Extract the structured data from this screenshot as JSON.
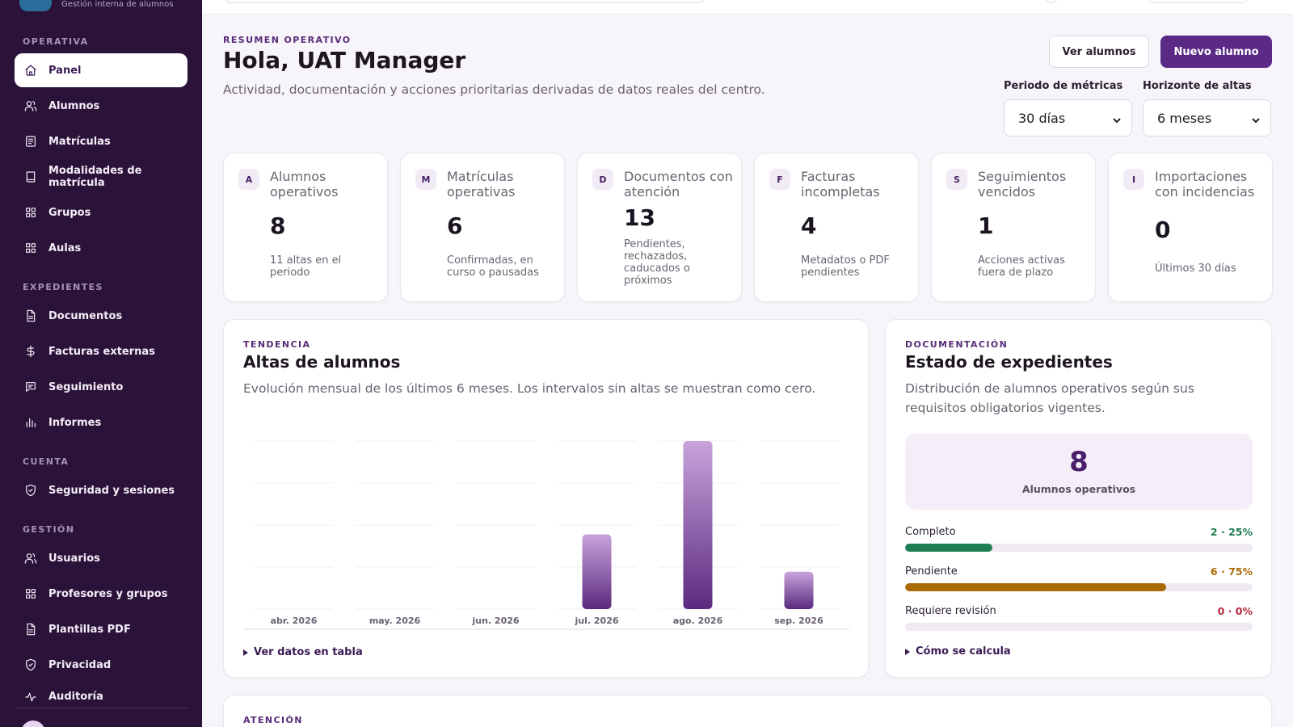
{
  "brand": {
    "subtitle": "Gestión interna de alumnos"
  },
  "sidebar": {
    "sections": [
      {
        "label": "OPERATIVA"
      },
      {
        "label": "EXPEDIENTES"
      },
      {
        "label": "CUENTA"
      },
      {
        "label": "GESTIÓN"
      }
    ],
    "items": [
      {
        "label": "Panel",
        "icon": "home-icon",
        "active": true
      },
      {
        "label": "Alumnos",
        "icon": "users-icon"
      },
      {
        "label": "Matrículas",
        "icon": "clipboard-icon"
      },
      {
        "label": "Modalidades de matrícula",
        "icon": "book-icon"
      },
      {
        "label": "Grupos",
        "icon": "grid-icon"
      },
      {
        "label": "Aulas",
        "icon": "grid-icon"
      },
      {
        "label": "Documentos",
        "icon": "file-icon"
      },
      {
        "label": "Facturas externas",
        "icon": "dollar-icon"
      },
      {
        "label": "Seguimiento",
        "icon": "message-icon"
      },
      {
        "label": "Informes",
        "icon": "bar-chart-icon"
      },
      {
        "label": "Seguridad y sesiones",
        "icon": "shield-icon"
      },
      {
        "label": "Usuarios",
        "icon": "users-icon"
      },
      {
        "label": "Profesores y grupos",
        "icon": "grid-icon"
      },
      {
        "label": "Plantillas PDF",
        "icon": "file-icon"
      },
      {
        "label": "Privacidad",
        "icon": "shield-icon"
      },
      {
        "label": "Auditoría",
        "icon": "activity-icon"
      }
    ]
  },
  "header": {
    "eyebrow": "RESUMEN OPERATIVO",
    "title": "Hola, UAT Manager",
    "subtitle": "Actividad, documentación y acciones prioritarias derivadas de datos reales del centro.",
    "view_students_label": "Ver alumnos",
    "new_student_label": "Nuevo alumno",
    "metrics_period_label": "Periodo de métricas",
    "metrics_period_value": "30 días",
    "enrollment_horizon_label": "Horizonte de altas",
    "enrollment_horizon_value": "6 meses"
  },
  "metrics": [
    {
      "badge": "A",
      "title": "Alumnos operativos",
      "value": "8",
      "note": "11 altas en el periodo"
    },
    {
      "badge": "M",
      "title": "Matrículas operativas",
      "value": "6",
      "note": "Confirmadas, en curso o pausadas"
    },
    {
      "badge": "D",
      "title": "Documentos con atención",
      "value": "13",
      "note": "Pendientes, rechazados, caducados o próximos"
    },
    {
      "badge": "F",
      "title": "Facturas incompletas",
      "value": "4",
      "note": "Metadatos o PDF pendientes"
    },
    {
      "badge": "S",
      "title": "Seguimientos vencidos",
      "value": "1",
      "note": "Acciones activas fuera de plazo"
    },
    {
      "badge": "I",
      "title": "Importaciones con incidencias",
      "value": "0",
      "note": "Últimos 30 días"
    }
  ],
  "trend": {
    "eyebrow": "TENDENCIA",
    "title": "Altas de alumnos",
    "subtitle": "Evolución mensual de los últimos 6 meses. Los intervalos sin altas se muestran como cero.",
    "details_label": "Ver datos en tabla"
  },
  "chart_data": {
    "type": "bar",
    "title": "Altas de alumnos",
    "categories": [
      "abr. 2026",
      "may. 2026",
      "jun. 2026",
      "jul. 2026",
      "ago. 2026",
      "sep. 2026"
    ],
    "values": [
      0,
      0,
      0,
      2,
      4.5,
      1
    ],
    "ylim": [
      0,
      4.5
    ],
    "grid": true,
    "colors": {
      "bar_top": "#c9a3dc",
      "bar_bottom": "#5b2a7f"
    }
  },
  "docs": {
    "eyebrow": "DOCUMENTACIÓN",
    "title": "Estado de expedientes",
    "subtitle_line1": "Distribución de alumnos operativos según sus",
    "subtitle_line2": "requisitos obligatorios vigentes.",
    "total_value": "8",
    "total_label": "Alumnos operativos",
    "details_label": "Cómo se calcula",
    "rows": [
      {
        "label": "Completo",
        "value": "2 · 25%",
        "fraction": 0.25,
        "color": "#1e7d53"
      },
      {
        "label": "Pendiente",
        "value": "6 · 75%",
        "fraction": 0.75,
        "color": "#a96b08"
      },
      {
        "label": "Requiere revisión",
        "value": "0 · 0%",
        "fraction": 0,
        "color": "#b4283f"
      }
    ]
  },
  "attention": {
    "eyebrow": "ATENCIÓN"
  }
}
